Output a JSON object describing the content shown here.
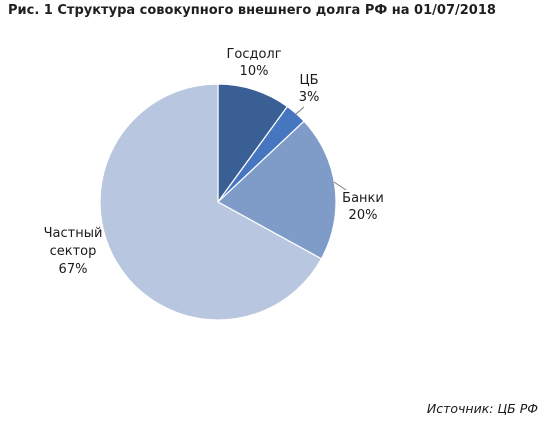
{
  "title": "Рис. 1 Структура совокупного внешнего долга РФ на 01/07/2018",
  "source": "Источник: ЦБ РФ",
  "chart_data": {
    "type": "pie",
    "start_angle": "12 o'clock",
    "direction": "clockwise",
    "slices": [
      {
        "name": "Госдолг",
        "value": 10,
        "label_lines": [
          "Госдолг",
          "10%"
        ],
        "color": "#3a5f94"
      },
      {
        "name": "ЦБ",
        "value": 3,
        "label_lines": [
          "ЦБ",
          "3%"
        ],
        "color": "#4676c0"
      },
      {
        "name": "Банки",
        "value": 20,
        "label_lines": [
          "Банки",
          "20%"
        ],
        "color": "#7f9cc9"
      },
      {
        "name": "Частный сектор",
        "value": 67,
        "label_lines": [
          "Частный",
          "сектор",
          "67%"
        ],
        "color": "#b8c6df"
      }
    ]
  }
}
